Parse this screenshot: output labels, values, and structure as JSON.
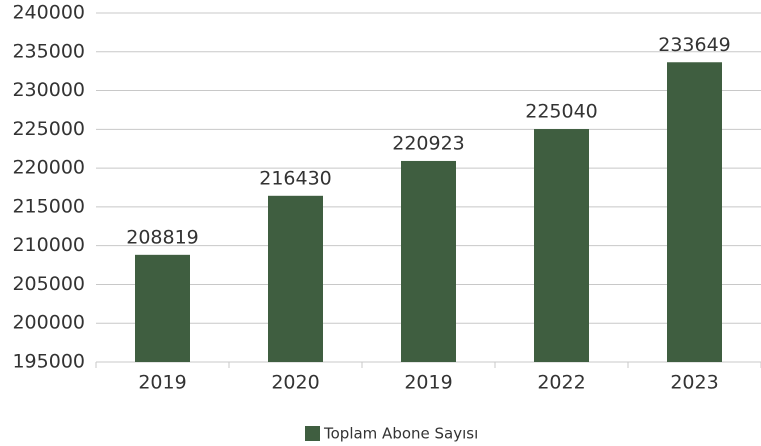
{
  "chart_data": {
    "type": "bar",
    "categories": [
      "2019",
      "2020",
      "2019",
      "2022",
      "2023"
    ],
    "series": [
      {
        "name": "Toplam Abone Sayısı",
        "color": "#3f5e40",
        "values": [
          208819,
          216430,
          220923,
          225040,
          233649
        ]
      }
    ],
    "ylim": [
      195000,
      240000
    ],
    "yticks": [
      195000,
      200000,
      205000,
      210000,
      215000,
      220000,
      225000,
      230000,
      235000,
      240000
    ],
    "grid": true,
    "legend": "bottom"
  }
}
